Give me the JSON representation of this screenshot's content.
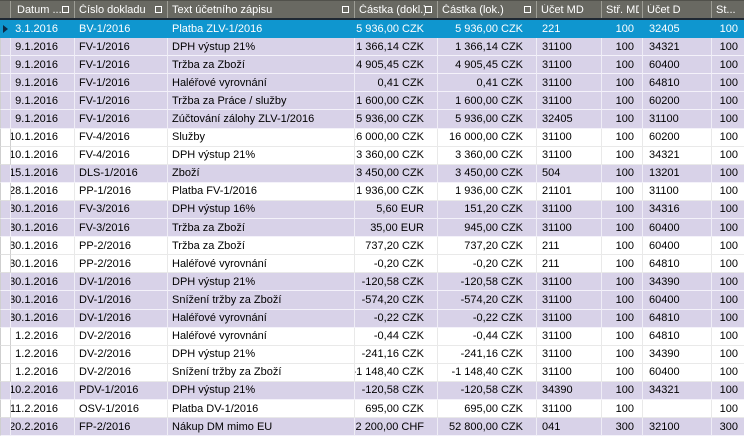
{
  "app": {
    "description": "Accounting journal entries data grid (Czech ERP software)",
    "language": "cs"
  },
  "colors": {
    "header_bg": "#696962",
    "header_text": "#ffffff",
    "header_underline": "#1f2833",
    "selected_row_bg": "#0f96cf",
    "selected_row_text": "#ffffff",
    "stripe_lavender": "#d8d2e8",
    "stripe_white": "#ffffff",
    "grid_line": "#e9e9e9",
    "row_marker": "#0d2b47"
  },
  "grid": {
    "columns": [
      {
        "key": "datum",
        "label": "Datum ...",
        "filter_box": true,
        "align": "right"
      },
      {
        "key": "cislo",
        "label": "Číslo dokladu",
        "filter_box": true,
        "align": "left"
      },
      {
        "key": "text",
        "label": "Text účetního zápisu",
        "filter_box": true,
        "align": "left"
      },
      {
        "key": "castka_dokl",
        "label": "Částka (dokl.)",
        "filter_box": true,
        "align": "right"
      },
      {
        "key": "castka_lok",
        "label": "Částka (lok.)",
        "filter_box": true,
        "align": "right"
      },
      {
        "key": "ucet_md",
        "label": "Účet MD",
        "filter_box": false,
        "align": "left"
      },
      {
        "key": "str_md",
        "label": "Stř. MD",
        "filter_box": false,
        "align": "right"
      },
      {
        "key": "ucet_d",
        "label": "Účet D",
        "filter_box": false,
        "align": "left"
      },
      {
        "key": "st",
        "label": "St...",
        "filter_box": false,
        "align": "right"
      }
    ],
    "rows": [
      {
        "selected": true,
        "shade": "white",
        "datum": "3.1.2016",
        "cislo": "BV-1/2016",
        "text": "Platba ZLV-1/2016",
        "castka_dokl": "5 936,00 CZK",
        "castka_lok": "5 936,00 CZK",
        "ucet_md": "221",
        "str_md": "100",
        "ucet_d": "32405",
        "st": "100"
      },
      {
        "selected": false,
        "shade": "lavender",
        "datum": "9.1.2016",
        "cislo": "FV-1/2016",
        "text": "DPH výstup 21%",
        "castka_dokl": "1 366,14 CZK",
        "castka_lok": "1 366,14 CZK",
        "ucet_md": "31100",
        "str_md": "100",
        "ucet_d": "34321",
        "st": "100"
      },
      {
        "selected": false,
        "shade": "lavender",
        "datum": "9.1.2016",
        "cislo": "FV-1/2016",
        "text": "Tržba za Zboží",
        "castka_dokl": "4 905,45 CZK",
        "castka_lok": "4 905,45 CZK",
        "ucet_md": "31100",
        "str_md": "100",
        "ucet_d": "60400",
        "st": "100"
      },
      {
        "selected": false,
        "shade": "lavender",
        "datum": "9.1.2016",
        "cislo": "FV-1/2016",
        "text": "Haléřové vyrovnání",
        "castka_dokl": "0,41 CZK",
        "castka_lok": "0,41 CZK",
        "ucet_md": "31100",
        "str_md": "100",
        "ucet_d": "64810",
        "st": "100"
      },
      {
        "selected": false,
        "shade": "lavender",
        "datum": "9.1.2016",
        "cislo": "FV-1/2016",
        "text": "Tržba za Práce / služby",
        "castka_dokl": "1 600,00 CZK",
        "castka_lok": "1 600,00 CZK",
        "ucet_md": "31100",
        "str_md": "100",
        "ucet_d": "60200",
        "st": "100"
      },
      {
        "selected": false,
        "shade": "lavender",
        "datum": "9.1.2016",
        "cislo": "FV-1/2016",
        "text": "Zúčtování zálohy ZLV-1/2016",
        "castka_dokl": "5 936,00 CZK",
        "castka_lok": "5 936,00 CZK",
        "ucet_md": "32405",
        "str_md": "100",
        "ucet_d": "31100",
        "st": "100"
      },
      {
        "selected": false,
        "shade": "white",
        "datum": "10.1.2016",
        "cislo": "FV-4/2016",
        "text": "Služby",
        "castka_dokl": "16 000,00 CZK",
        "castka_lok": "16 000,00 CZK",
        "ucet_md": "31100",
        "str_md": "100",
        "ucet_d": "60200",
        "st": "100"
      },
      {
        "selected": false,
        "shade": "white",
        "datum": "10.1.2016",
        "cislo": "FV-4/2016",
        "text": "DPH výstup 21%",
        "castka_dokl": "3 360,00 CZK",
        "castka_lok": "3 360,00 CZK",
        "ucet_md": "31100",
        "str_md": "100",
        "ucet_d": "34321",
        "st": "100"
      },
      {
        "selected": false,
        "shade": "lavender",
        "datum": "15.1.2016",
        "cislo": "DLS-1/2016",
        "text": "Zboží",
        "castka_dokl": "3 450,00 CZK",
        "castka_lok": "3 450,00 CZK",
        "ucet_md": "504",
        "str_md": "100",
        "ucet_d": "13201",
        "st": "100"
      },
      {
        "selected": false,
        "shade": "white",
        "datum": "28.1.2016",
        "cislo": "PP-1/2016",
        "text": "Platba FV-1/2016",
        "castka_dokl": "1 936,00 CZK",
        "castka_lok": "1 936,00 CZK",
        "ucet_md": "21101",
        "str_md": "100",
        "ucet_d": "31100",
        "st": "100"
      },
      {
        "selected": false,
        "shade": "lavender",
        "datum": "30.1.2016",
        "cislo": "FV-3/2016",
        "text": "DPH výstup 16%",
        "castka_dokl": "5,60 EUR",
        "castka_lok": "151,20 CZK",
        "ucet_md": "31100",
        "str_md": "100",
        "ucet_d": "34316",
        "st": "100"
      },
      {
        "selected": false,
        "shade": "lavender",
        "datum": "30.1.2016",
        "cislo": "FV-3/2016",
        "text": "Tržba za Zboží",
        "castka_dokl": "35,00 EUR",
        "castka_lok": "945,00 CZK",
        "ucet_md": "31100",
        "str_md": "100",
        "ucet_d": "60400",
        "st": "100"
      },
      {
        "selected": false,
        "shade": "white",
        "datum": "30.1.2016",
        "cislo": "PP-2/2016",
        "text": "Tržba za Zboží",
        "castka_dokl": "737,20 CZK",
        "castka_lok": "737,20 CZK",
        "ucet_md": "211",
        "str_md": "100",
        "ucet_d": "60400",
        "st": "100"
      },
      {
        "selected": false,
        "shade": "white",
        "datum": "30.1.2016",
        "cislo": "PP-2/2016",
        "text": "Haléřové vyrovnání",
        "castka_dokl": "-0,20 CZK",
        "castka_lok": "-0,20 CZK",
        "ucet_md": "211",
        "str_md": "100",
        "ucet_d": "64810",
        "st": "100"
      },
      {
        "selected": false,
        "shade": "lavender",
        "datum": "30.1.2016",
        "cislo": "DV-1/2016",
        "text": "DPH výstup 21%",
        "castka_dokl": "-120,58 CZK",
        "castka_lok": "-120,58 CZK",
        "ucet_md": "31100",
        "str_md": "100",
        "ucet_d": "34390",
        "st": "100"
      },
      {
        "selected": false,
        "shade": "lavender",
        "datum": "30.1.2016",
        "cislo": "DV-1/2016",
        "text": "Snížení tržby za Zboží",
        "castka_dokl": "-574,20 CZK",
        "castka_lok": "-574,20 CZK",
        "ucet_md": "31100",
        "str_md": "100",
        "ucet_d": "60400",
        "st": "100"
      },
      {
        "selected": false,
        "shade": "lavender",
        "datum": "30.1.2016",
        "cislo": "DV-1/2016",
        "text": "Haléřové vyrovnání",
        "castka_dokl": "-0,22 CZK",
        "castka_lok": "-0,22 CZK",
        "ucet_md": "31100",
        "str_md": "100",
        "ucet_d": "64810",
        "st": "100"
      },
      {
        "selected": false,
        "shade": "white",
        "datum": "1.2.2016",
        "cislo": "DV-2/2016",
        "text": "Haléřové vyrovnání",
        "castka_dokl": "-0,44 CZK",
        "castka_lok": "-0,44 CZK",
        "ucet_md": "31100",
        "str_md": "100",
        "ucet_d": "64810",
        "st": "100"
      },
      {
        "selected": false,
        "shade": "white",
        "datum": "1.2.2016",
        "cislo": "DV-2/2016",
        "text": "DPH výstup 21%",
        "castka_dokl": "-241,16 CZK",
        "castka_lok": "-241,16 CZK",
        "ucet_md": "31100",
        "str_md": "100",
        "ucet_d": "34390",
        "st": "100"
      },
      {
        "selected": false,
        "shade": "white",
        "datum": "1.2.2016",
        "cislo": "DV-2/2016",
        "text": "Snížení tržby za Zboží",
        "castka_dokl": "-1 148,40 CZK",
        "castka_lok": "-1 148,40 CZK",
        "ucet_md": "31100",
        "str_md": "100",
        "ucet_d": "60400",
        "st": "100"
      },
      {
        "selected": false,
        "shade": "lavender",
        "datum": "10.2.2016",
        "cislo": "PDV-1/2016",
        "text": "DPH výstup 21%",
        "castka_dokl": "-120,58 CZK",
        "castka_lok": "-120,58 CZK",
        "ucet_md": "34390",
        "str_md": "100",
        "ucet_d": "34321",
        "st": "100"
      },
      {
        "selected": false,
        "shade": "white",
        "datum": "11.2.2016",
        "cislo": "OSV-1/2016",
        "text": "Platba DV-1/2016",
        "castka_dokl": "695,00 CZK",
        "castka_lok": "695,00 CZK",
        "ucet_md": "31100",
        "str_md": "100",
        "ucet_d": "",
        "st": "100"
      },
      {
        "selected": false,
        "shade": "lavender",
        "datum": "20.2.2016",
        "cislo": "FP-2/2016",
        "text": "Nákup DM mimo EU",
        "castka_dokl": "2 200,00 CHF",
        "castka_lok": "52 800,00 CZK",
        "ucet_md": "041",
        "str_md": "300",
        "ucet_d": "32100",
        "st": "300"
      }
    ]
  }
}
